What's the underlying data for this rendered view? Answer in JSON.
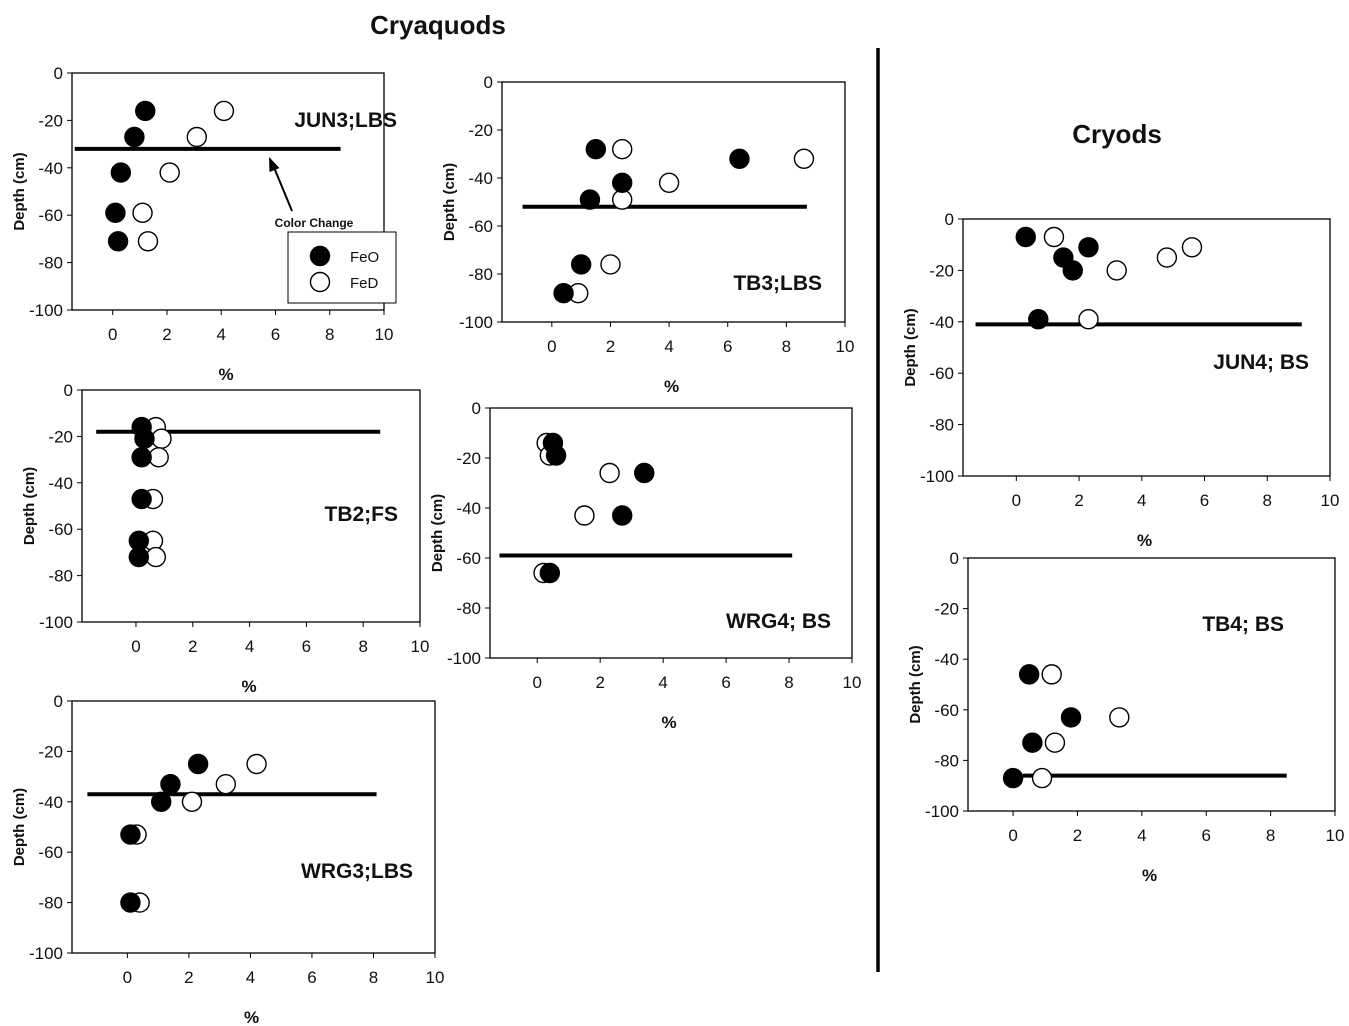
{
  "headers": {
    "left": "Cryaquods",
    "right": "Cryods"
  },
  "legend": {
    "feo": "FeO",
    "fed": "FeD"
  },
  "annotation": "Color Change",
  "chart_data": [
    {
      "id": "jun3",
      "type": "scatter",
      "title": "JUN3;LBS",
      "group": "Cryaquods",
      "xlabel": "%",
      "ylabel": "Depth (cm)",
      "xlim": [
        -1.5,
        10
      ],
      "ylim": [
        -100,
        0
      ],
      "xticks": [
        0,
        2,
        4,
        6,
        8,
        10
      ],
      "yticks": [
        0,
        -20,
        -40,
        -60,
        -80,
        -100
      ],
      "boundary": {
        "depth": -32,
        "x": [
          -1.4,
          8.4
        ]
      },
      "series": [
        {
          "name": "FeO",
          "points": [
            [
              1.2,
              -16
            ],
            [
              0.8,
              -27
            ],
            [
              0.3,
              -42
            ],
            [
              0.1,
              -59
            ],
            [
              0.2,
              -71
            ]
          ]
        },
        {
          "name": "FeD",
          "points": [
            [
              4.1,
              -16
            ],
            [
              3.1,
              -27
            ],
            [
              2.1,
              -42
            ],
            [
              1.1,
              -59
            ],
            [
              1.3,
              -71
            ]
          ]
        }
      ]
    },
    {
      "id": "tb3",
      "type": "scatter",
      "title": "TB3;LBS",
      "group": "Cryaquods",
      "xlabel": "%",
      "ylabel": "Depth (cm)",
      "xlim": [
        -1.7,
        10
      ],
      "ylim": [
        -100,
        0
      ],
      "xticks": [
        0,
        2,
        4,
        6,
        8,
        10
      ],
      "yticks": [
        0,
        -20,
        -40,
        -60,
        -80,
        -100
      ],
      "boundary": {
        "depth": -52,
        "x": [
          -1.0,
          8.7
        ]
      },
      "series": [
        {
          "name": "FeO",
          "points": [
            [
              1.5,
              -28
            ],
            [
              6.4,
              -32
            ],
            [
              2.4,
              -42
            ],
            [
              1.3,
              -49
            ],
            [
              1.0,
              -76
            ],
            [
              0.4,
              -88
            ]
          ]
        },
        {
          "name": "FeD",
          "points": [
            [
              2.4,
              -28
            ],
            [
              8.6,
              -32
            ],
            [
              4.0,
              -42
            ],
            [
              2.4,
              -49
            ],
            [
              2.0,
              -76
            ],
            [
              0.9,
              -88
            ]
          ]
        }
      ]
    },
    {
      "id": "tb2",
      "type": "scatter",
      "title": "TB2;FS",
      "group": "Cryaquods",
      "xlabel": "%",
      "ylabel": "Depth (cm)",
      "xlim": [
        -1.9,
        10
      ],
      "ylim": [
        -100,
        0
      ],
      "xticks": [
        0,
        2,
        4,
        6,
        8,
        10
      ],
      "yticks": [
        0,
        -20,
        -40,
        -60,
        -80,
        -100
      ],
      "boundary": {
        "depth": -18,
        "x": [
          -1.4,
          8.6
        ]
      },
      "series": [
        {
          "name": "FeO",
          "points": [
            [
              0.2,
              -16
            ],
            [
              0.3,
              -21
            ],
            [
              0.2,
              -29
            ],
            [
              0.2,
              -47
            ],
            [
              0.1,
              -65
            ],
            [
              0.1,
              -72
            ]
          ]
        },
        {
          "name": "FeD",
          "points": [
            [
              0.7,
              -16
            ],
            [
              0.9,
              -21
            ],
            [
              0.8,
              -29
            ],
            [
              0.6,
              -47
            ],
            [
              0.6,
              -65
            ],
            [
              0.7,
              -72
            ]
          ]
        }
      ]
    },
    {
      "id": "wrg4",
      "type": "scatter",
      "title": "WRG4; BS",
      "group": "Cryaquods",
      "xlabel": "%",
      "ylabel": "Depth (cm)",
      "xlim": [
        -1.5,
        10
      ],
      "ylim": [
        -100,
        0
      ],
      "xticks": [
        0,
        2,
        4,
        6,
        8,
        10
      ],
      "yticks": [
        0,
        -20,
        -40,
        -60,
        -80,
        -100
      ],
      "boundary": {
        "depth": -59,
        "x": [
          -1.2,
          8.1
        ]
      },
      "series": [
        {
          "name": "FeO",
          "points": [
            [
              0.5,
              -14
            ],
            [
              0.6,
              -19
            ],
            [
              3.4,
              -26
            ],
            [
              2.7,
              -43
            ],
            [
              0.4,
              -66
            ]
          ]
        },
        {
          "name": "FeD",
          "points": [
            [
              0.3,
              -14
            ],
            [
              0.4,
              -19
            ],
            [
              2.3,
              -26
            ],
            [
              1.5,
              -43
            ],
            [
              0.2,
              -66
            ]
          ]
        }
      ]
    },
    {
      "id": "wrg3",
      "type": "scatter",
      "title": "WRG3;LBS",
      "group": "Cryaquods",
      "xlabel": "%",
      "ylabel": "Depth (cm)",
      "xlim": [
        -1.8,
        10
      ],
      "ylim": [
        -100,
        0
      ],
      "xticks": [
        0,
        2,
        4,
        6,
        8,
        10
      ],
      "yticks": [
        0,
        -20,
        -40,
        -60,
        -80,
        -100
      ],
      "boundary": {
        "depth": -37,
        "x": [
          -1.3,
          8.1
        ]
      },
      "series": [
        {
          "name": "FeO",
          "points": [
            [
              2.3,
              -25
            ],
            [
              1.4,
              -33
            ],
            [
              1.1,
              -40
            ],
            [
              0.1,
              -53
            ],
            [
              0.1,
              -80
            ]
          ]
        },
        {
          "name": "FeD",
          "points": [
            [
              4.2,
              -25
            ],
            [
              3.2,
              -33
            ],
            [
              2.1,
              -40
            ],
            [
              0.3,
              -53
            ],
            [
              0.4,
              -80
            ]
          ]
        }
      ]
    },
    {
      "id": "jun4",
      "type": "scatter",
      "title": "JUN4; BS",
      "group": "Cryods",
      "xlabel": "%",
      "ylabel": "Depth (cm)",
      "xlim": [
        -1.7,
        10
      ],
      "ylim": [
        -100,
        0
      ],
      "xticks": [
        0,
        2,
        4,
        6,
        8,
        10
      ],
      "yticks": [
        0,
        -20,
        -40,
        -60,
        -80,
        -100
      ],
      "boundary": {
        "depth": -41,
        "x": [
          -1.3,
          9.1
        ]
      },
      "series": [
        {
          "name": "FeO",
          "points": [
            [
              0.3,
              -7
            ],
            [
              2.3,
              -11
            ],
            [
              1.5,
              -15
            ],
            [
              1.8,
              -20
            ],
            [
              0.7,
              -39
            ]
          ]
        },
        {
          "name": "FeD",
          "points": [
            [
              1.2,
              -7
            ],
            [
              5.6,
              -11
            ],
            [
              4.8,
              -15
            ],
            [
              3.2,
              -20
            ],
            [
              2.3,
              -39
            ]
          ]
        }
      ]
    },
    {
      "id": "tb4",
      "type": "scatter",
      "title": "TB4; BS",
      "group": "Cryods",
      "xlabel": "%",
      "ylabel": "Depth (cm)",
      "xlim": [
        -1.4,
        10
      ],
      "ylim": [
        -100,
        0
      ],
      "xticks": [
        0,
        2,
        4,
        6,
        8,
        10
      ],
      "yticks": [
        0,
        -20,
        -40,
        -60,
        -80,
        -100
      ],
      "boundary": {
        "depth": -86,
        "x": [
          0.3,
          8.5
        ]
      },
      "series": [
        {
          "name": "FeO",
          "points": [
            [
              0.5,
              -46
            ],
            [
              1.8,
              -63
            ],
            [
              0.6,
              -73
            ],
            [
              0.0,
              -87
            ]
          ]
        },
        {
          "name": "FeD",
          "points": [
            [
              1.2,
              -46
            ],
            [
              3.3,
              -63
            ],
            [
              1.3,
              -73
            ],
            [
              0.9,
              -87
            ]
          ]
        }
      ]
    }
  ]
}
